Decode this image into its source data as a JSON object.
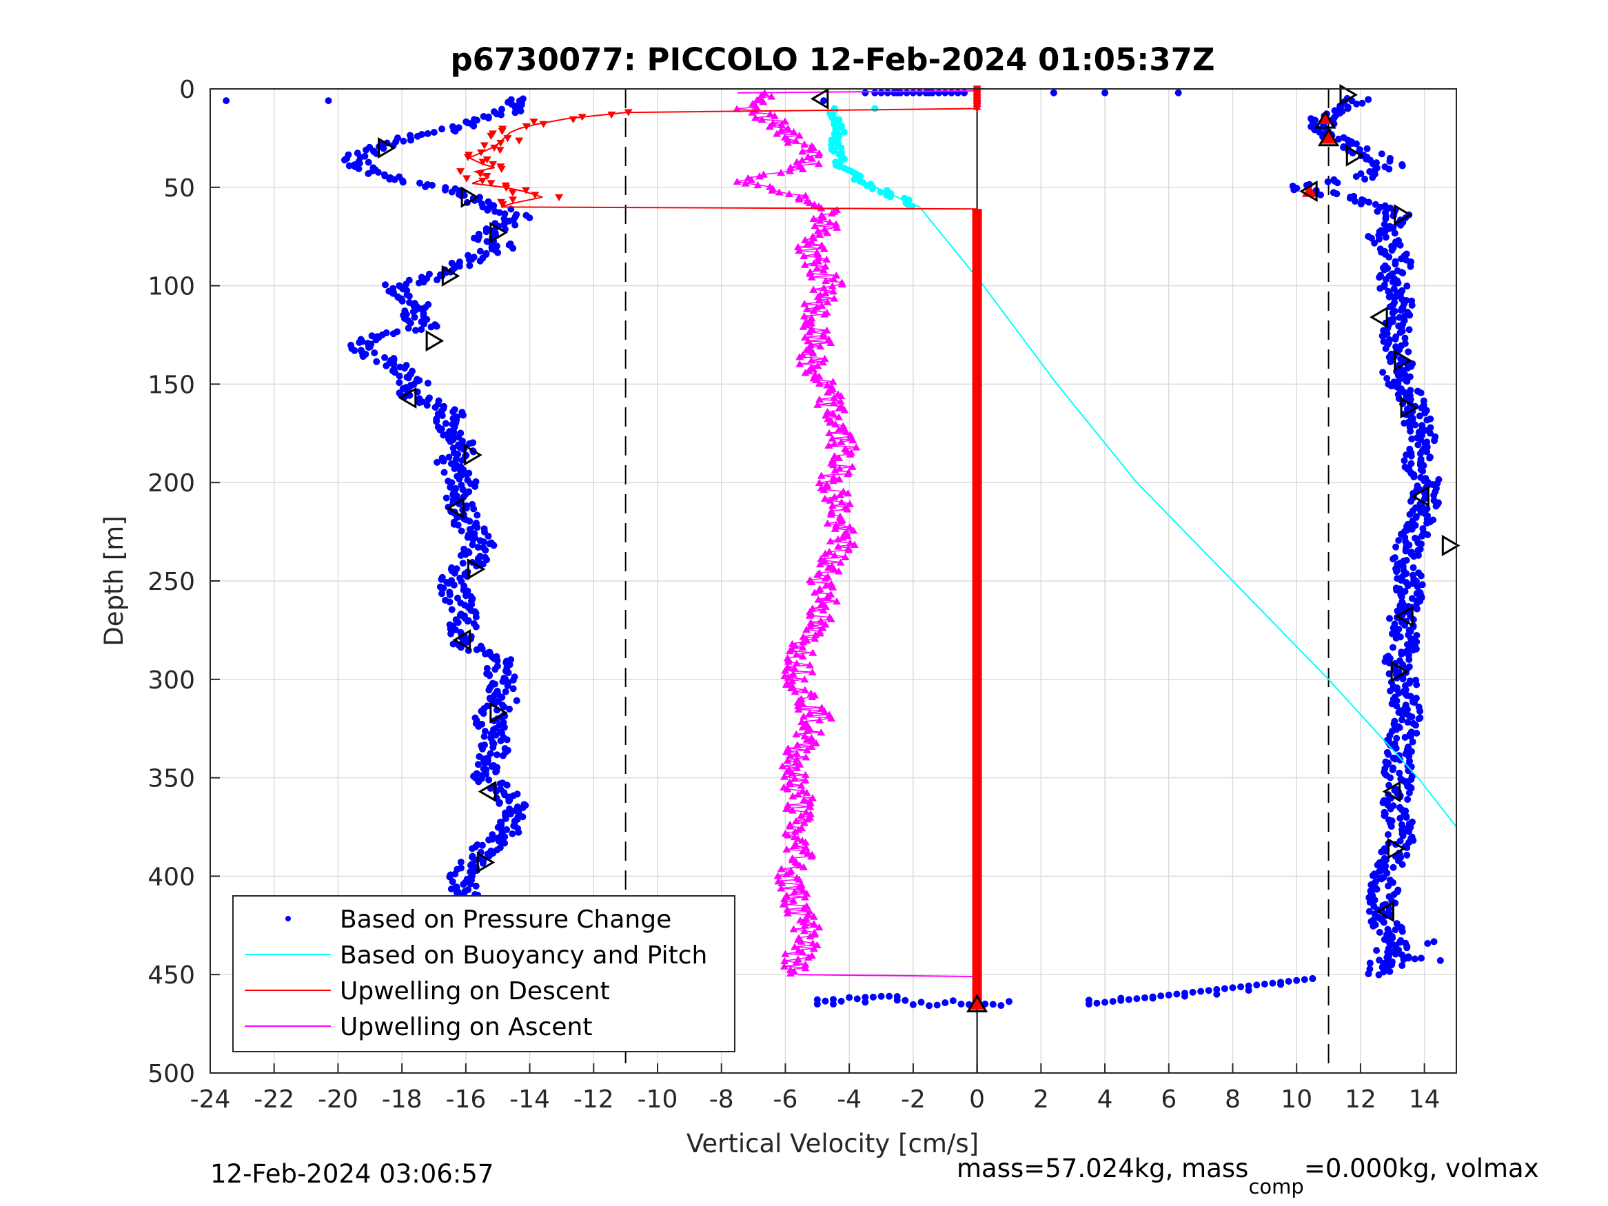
{
  "chart_data": {
    "type": "scatter",
    "title": "p6730077: PICCOLO 12-Feb-2024 01:05:37Z",
    "xlabel": "Vertical Velocity [cm/s]",
    "ylabel": "Depth [m]",
    "xlim": [
      -24,
      15
    ],
    "ylim": [
      0,
      500
    ],
    "y_reversed": true,
    "grid": true,
    "x_ticks": [
      -24,
      -22,
      -20,
      -18,
      -16,
      -14,
      -12,
      -10,
      -8,
      -6,
      -4,
      -2,
      0,
      2,
      4,
      6,
      8,
      10,
      12,
      14
    ],
    "y_ticks": [
      0,
      50,
      100,
      150,
      200,
      250,
      300,
      350,
      400,
      450,
      500
    ],
    "reference_lines_x": [
      -11,
      0,
      11
    ],
    "legend_position": "bottom-left",
    "series": [
      {
        "name": "Based on Pressure Change",
        "style": "points",
        "color": "#0000ff",
        "descent": {
          "depth": [
            5,
            10,
            20,
            25,
            30,
            35,
            40,
            45,
            50,
            55,
            60,
            65,
            70,
            75,
            80,
            85,
            90,
            95,
            100,
            105,
            110,
            115,
            120,
            125,
            130,
            135,
            140,
            145,
            150,
            155,
            160,
            165,
            170,
            175,
            180,
            185,
            190,
            195,
            200,
            210,
            220,
            230,
            240,
            250,
            260,
            270,
            280,
            290,
            300,
            310,
            320,
            330,
            340,
            350,
            360,
            370,
            380,
            390,
            400,
            410,
            420,
            430,
            440,
            450
          ],
          "velocity": [
            -14.2,
            -14.5,
            -16.2,
            -18.0,
            -18.6,
            -19.5,
            -19.2,
            -18.2,
            -16.8,
            -16.0,
            -15.2,
            -14.3,
            -14.9,
            -15.5,
            -14.8,
            -15.6,
            -16.2,
            -16.8,
            -18.2,
            -17.8,
            -17.5,
            -17.6,
            -17.2,
            -18.5,
            -19.3,
            -18.9,
            -18.3,
            -18.0,
            -17.6,
            -17.7,
            -17.0,
            -16.5,
            -16.6,
            -16.4,
            -16.2,
            -16.0,
            -16.6,
            -16.3,
            -16.1,
            -16.2,
            -16.0,
            -15.5,
            -15.8,
            -16.5,
            -16.2,
            -16.0,
            -16.3,
            -15.0,
            -14.9,
            -14.8,
            -15.3,
            -15.0,
            -15.2,
            -15.4,
            -14.7,
            -14.4,
            -14.9,
            -15.7,
            -16.1,
            -16.0,
            -15.7,
            -15.3,
            -15.0,
            -14.5
          ]
        },
        "ascent": {
          "depth": [
            5,
            10,
            15,
            20,
            25,
            30,
            35,
            40,
            45,
            50,
            55,
            60,
            65,
            70,
            75,
            80,
            85,
            90,
            95,
            100,
            105,
            110,
            115,
            120,
            125,
            130,
            135,
            140,
            145,
            150,
            155,
            160,
            165,
            170,
            175,
            180,
            185,
            190,
            195,
            200,
            210,
            220,
            230,
            240,
            250,
            260,
            270,
            280,
            290,
            300,
            310,
            320,
            330,
            340,
            350,
            360,
            370,
            380,
            390,
            400,
            410,
            420,
            430,
            440,
            450
          ],
          "velocity": [
            12.0,
            11.5,
            10.8,
            10.9,
            11.2,
            11.9,
            12.5,
            13.0,
            12.0,
            10.0,
            11.5,
            12.7,
            13.2,
            12.8,
            12.6,
            13.0,
            13.1,
            13.2,
            12.9,
            13.0,
            13.2,
            13.4,
            13.1,
            13.2,
            13.0,
            13.1,
            13.3,
            13.2,
            13.1,
            13.3,
            13.5,
            13.6,
            13.7,
            13.8,
            13.9,
            14.0,
            13.9,
            13.7,
            13.9,
            14.1,
            14.0,
            13.9,
            13.6,
            13.4,
            13.5,
            13.6,
            13.3,
            13.4,
            13.2,
            13.3,
            13.4,
            13.5,
            13.3,
            13.1,
            13.2,
            13.1,
            13.2,
            13.3,
            13.0,
            12.8,
            12.7,
            12.6,
            13.0,
            13.2,
            12.5
          ],
          "bottom_turn": {
            "depth": [
              452,
              455,
              458,
              460,
              461,
              462,
              462,
              463,
              463,
              464,
              465,
              465
            ],
            "velocity": [
              10.5,
              9.5,
              8.5,
              7.5,
              6.5,
              5.5,
              4.5,
              3.5,
              -2.5,
              -3.5,
              -4.5,
              -5.0
            ]
          }
        },
        "surface_points": {
          "depth": [
            2,
            2,
            2,
            2,
            2,
            2,
            6,
            6,
            6
          ],
          "velocity": [
            6.3,
            4.0,
            2.4,
            -1.5,
            -2.5,
            -3.5,
            -23.5,
            -20.3,
            -4.8
          ]
        }
      },
      {
        "name": "Based on Buoyancy and Pitch",
        "style": "line-with-points",
        "color": "#00ffff",
        "depth": [
          10,
          20,
          30,
          40,
          45,
          50,
          55,
          60,
          80,
          100,
          150,
          200,
          250,
          300,
          350,
          375
        ],
        "velocity": [
          -4.5,
          -4.3,
          -4.4,
          -4.2,
          -3.8,
          -3.2,
          -2.5,
          -1.8,
          -0.8,
          0.2,
          2.5,
          5.0,
          8.0,
          11.0,
          13.8,
          15.0
        ]
      },
      {
        "name": "Upwelling on Descent",
        "style": "line-with-triangle-down",
        "color": "#ff0000",
        "depth": [
          10,
          12,
          15,
          18,
          20,
          22,
          25,
          28,
          30,
          33,
          35,
          38,
          40,
          42,
          45,
          48,
          50,
          52,
          55,
          58,
          60,
          61
        ],
        "velocity": [
          0,
          -11.0,
          -12.8,
          -13.8,
          -14.3,
          -14.6,
          -14.8,
          -15.0,
          -15.2,
          -15.6,
          -15.9,
          -15.5,
          -15.1,
          -15.7,
          -15.3,
          -15.8,
          -14.8,
          -14.2,
          -13.6,
          -14.5,
          -14.9,
          0
        ],
        "at_zero_depth_range": [
          61,
          465
        ]
      },
      {
        "name": "Upwelling on Ascent",
        "style": "line-with-triangle-up",
        "color": "#ff00ff",
        "depth": [
          2,
          5,
          10,
          15,
          20,
          25,
          30,
          35,
          40,
          45,
          50,
          55,
          60,
          70,
          80,
          90,
          100,
          110,
          120,
          130,
          140,
          150,
          160,
          170,
          180,
          190,
          200,
          210,
          220,
          230,
          240,
          250,
          260,
          270,
          280,
          290,
          300,
          310,
          320,
          330,
          340,
          350,
          360,
          370,
          380,
          390,
          400,
          410,
          420,
          430,
          440,
          450
        ],
        "velocity": [
          -7.0,
          -6.8,
          -7.2,
          -6.6,
          -6.0,
          -5.8,
          -5.5,
          -5.0,
          -5.5,
          -7.5,
          -6.8,
          -5.6,
          -4.5,
          -4.8,
          -5.2,
          -5.0,
          -4.6,
          -5.0,
          -5.2,
          -5.0,
          -5.3,
          -4.8,
          -4.6,
          -4.4,
          -4.2,
          -4.3,
          -4.5,
          -4.3,
          -4.4,
          -4.2,
          -4.6,
          -4.8,
          -4.7,
          -5.0,
          -5.4,
          -5.5,
          -5.6,
          -5.3,
          -5.0,
          -5.4,
          -5.6,
          -5.8,
          -5.5,
          -5.6,
          -5.8,
          -5.4,
          -5.9,
          -5.7,
          -5.5,
          -5.2,
          -5.6,
          -5.8
        ],
        "at_zero_depth_range": [
          450,
          465
        ]
      }
    ],
    "annotations": {
      "black_triangles": [
        {
          "depth": 3,
          "velocity": 11.6,
          "dir": "right"
        },
        {
          "depth": 5,
          "velocity": -4.9,
          "dir": "left"
        },
        {
          "depth": 16,
          "velocity": 10.9,
          "dir": "up"
        },
        {
          "depth": 25,
          "velocity": 11.0,
          "dir": "up"
        },
        {
          "depth": 30,
          "velocity": -18.5,
          "dir": "right"
        },
        {
          "depth": 34,
          "velocity": 11.8,
          "dir": "right"
        },
        {
          "depth": 52,
          "velocity": 10.4,
          "dir": "left"
        },
        {
          "depth": 55,
          "velocity": -15.9,
          "dir": "right"
        },
        {
          "depth": 64,
          "velocity": 13.3,
          "dir": "right"
        },
        {
          "depth": 73,
          "velocity": -15.0,
          "dir": "right"
        },
        {
          "depth": 95,
          "velocity": -16.5,
          "dir": "right"
        },
        {
          "depth": 116,
          "velocity": 12.6,
          "dir": "left"
        },
        {
          "depth": 128,
          "velocity": -17.0,
          "dir": "right"
        },
        {
          "depth": 138,
          "velocity": 13.3,
          "dir": "right"
        },
        {
          "depth": 157,
          "velocity": -17.8,
          "dir": "left"
        },
        {
          "depth": 162,
          "velocity": 13.5,
          "dir": "right"
        },
        {
          "depth": 186,
          "velocity": -15.8,
          "dir": "right"
        },
        {
          "depth": 207,
          "velocity": 13.9,
          "dir": "left"
        },
        {
          "depth": 213,
          "velocity": -16.3,
          "dir": "left"
        },
        {
          "depth": 232,
          "velocity": 14.8,
          "dir": "right"
        },
        {
          "depth": 244,
          "velocity": -15.7,
          "dir": "right"
        },
        {
          "depth": 268,
          "velocity": 13.4,
          "dir": "left"
        },
        {
          "depth": 280,
          "velocity": -16.1,
          "dir": "left"
        },
        {
          "depth": 296,
          "velocity": 13.2,
          "dir": "right"
        },
        {
          "depth": 317,
          "velocity": -15.0,
          "dir": "right"
        },
        {
          "depth": 357,
          "velocity": -15.3,
          "dir": "left"
        },
        {
          "depth": 357,
          "velocity": 13.0,
          "dir": "left"
        },
        {
          "depth": 386,
          "velocity": 13.1,
          "dir": "right"
        },
        {
          "depth": 393,
          "velocity": -15.4,
          "dir": "right"
        },
        {
          "depth": 418,
          "velocity": 12.8,
          "dir": "left"
        },
        {
          "depth": 435,
          "velocity": -15.8,
          "dir": "right"
        },
        {
          "depth": 457,
          "velocity": -15.5,
          "dir": "up"
        },
        {
          "depth": 465,
          "velocity": 0.0,
          "dir": "up"
        }
      ],
      "red_markers": [
        {
          "depth": 15,
          "velocity": 10.9
        },
        {
          "depth": 25,
          "velocity": 11.0
        },
        {
          "depth": 52,
          "velocity": 10.4
        },
        {
          "depth": 457,
          "velocity": -15.5
        },
        {
          "depth": 465,
          "velocity": 0.0
        }
      ]
    }
  },
  "footer": {
    "left": "12-Feb-2024 03:06:57",
    "right_prefix": "mass=57.024kg, mass",
    "right_sub": "comp",
    "right_suffix": "=0.000kg, volmax"
  }
}
